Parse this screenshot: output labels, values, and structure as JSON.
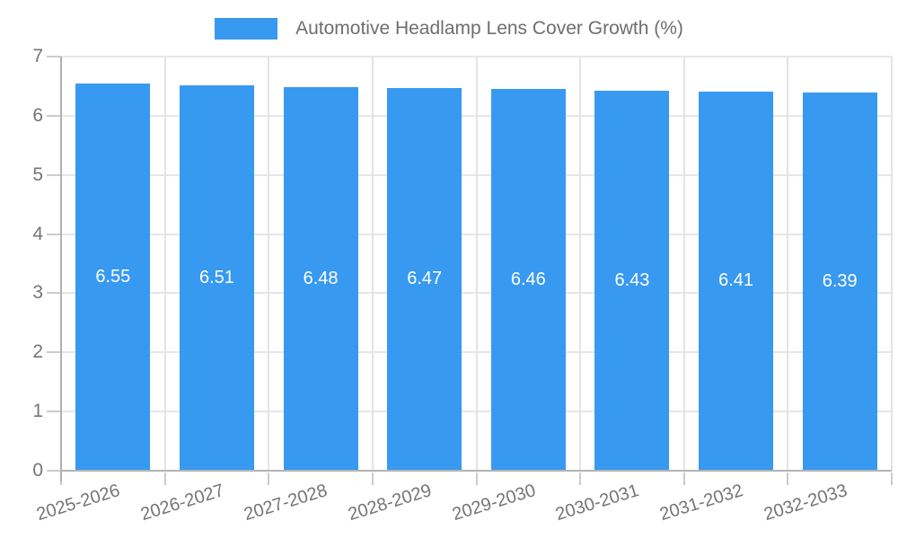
{
  "legend": {
    "label": "Automotive Headlamp Lens Cover Growth (%)"
  },
  "chart_data": {
    "type": "bar",
    "title": "Automotive Headlamp Lens Cover Growth (%)",
    "categories": [
      "2025-2026",
      "2026-2027",
      "2027-2028",
      "2028-2029",
      "2029-2030",
      "2030-2031",
      "2031-2032",
      "2032-2033"
    ],
    "values": [
      6.55,
      6.51,
      6.48,
      6.47,
      6.46,
      6.43,
      6.41,
      6.39
    ],
    "value_labels": [
      "6.55",
      "6.51",
      "6.48",
      "6.47",
      "6.46",
      "6.43",
      "6.41",
      "6.39"
    ],
    "xlabel": "",
    "ylabel": "",
    "ylim": [
      0,
      7
    ],
    "ytick_step": 1,
    "ytick_labels": [
      "0",
      "1",
      "2",
      "3",
      "4",
      "5",
      "6",
      "7"
    ],
    "grid": true,
    "legend_position": "top-center",
    "bar_label_position": "inside-center",
    "colors": {
      "bar": "#3899f0",
      "bar_label": "#ffffff",
      "axis_text": "#757575",
      "legend_text": "#6e6e6e",
      "grid": "#e6e6e6",
      "axis_line": "#b0b0b0",
      "tick": "#cccccc",
      "background": "#ffffff"
    }
  }
}
